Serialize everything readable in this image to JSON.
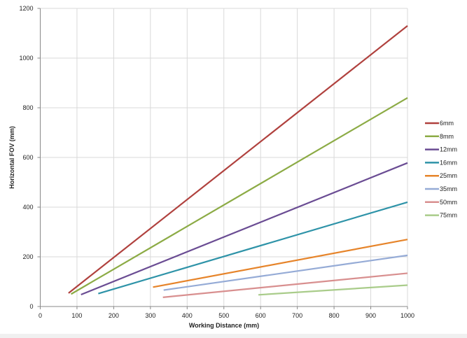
{
  "chart_data": {
    "type": "line",
    "title": "",
    "xlabel": "Working Distance (mm)",
    "ylabel": "Horizontal FOV (mm)",
    "xlim": [
      0,
      1000
    ],
    "ylim": [
      0,
      1200
    ],
    "xticks": [
      0,
      100,
      200,
      300,
      400,
      500,
      600,
      700,
      800,
      900,
      1000
    ],
    "yticks": [
      0,
      200,
      400,
      600,
      800,
      1000,
      1200
    ],
    "grid": true,
    "legend": "right",
    "series": [
      {
        "name": "6mm",
        "color": "#b0413e",
        "x": [
          77,
          1000
        ],
        "y": [
          54,
          1130
        ]
      },
      {
        "name": "8mm",
        "color": "#8cab45",
        "x": [
          84,
          1000
        ],
        "y": [
          50,
          840
        ]
      },
      {
        "name": "12mm",
        "color": "#6a4c93",
        "x": [
          111,
          1000
        ],
        "y": [
          48,
          578
        ]
      },
      {
        "name": "16mm",
        "color": "#2e93a8",
        "x": [
          158,
          1000
        ],
        "y": [
          52,
          420
        ]
      },
      {
        "name": "25mm",
        "color": "#e6842a",
        "x": [
          307,
          1000
        ],
        "y": [
          78,
          270
        ]
      },
      {
        "name": "35mm",
        "color": "#95abd6",
        "x": [
          336,
          1000
        ],
        "y": [
          66,
          206
        ]
      },
      {
        "name": "50mm",
        "color": "#d88f8f",
        "x": [
          334,
          1000
        ],
        "y": [
          37,
          134
        ]
      },
      {
        "name": "75mm",
        "color": "#a9cc8a",
        "x": [
          594,
          1000
        ],
        "y": [
          47,
          86
        ]
      }
    ]
  }
}
